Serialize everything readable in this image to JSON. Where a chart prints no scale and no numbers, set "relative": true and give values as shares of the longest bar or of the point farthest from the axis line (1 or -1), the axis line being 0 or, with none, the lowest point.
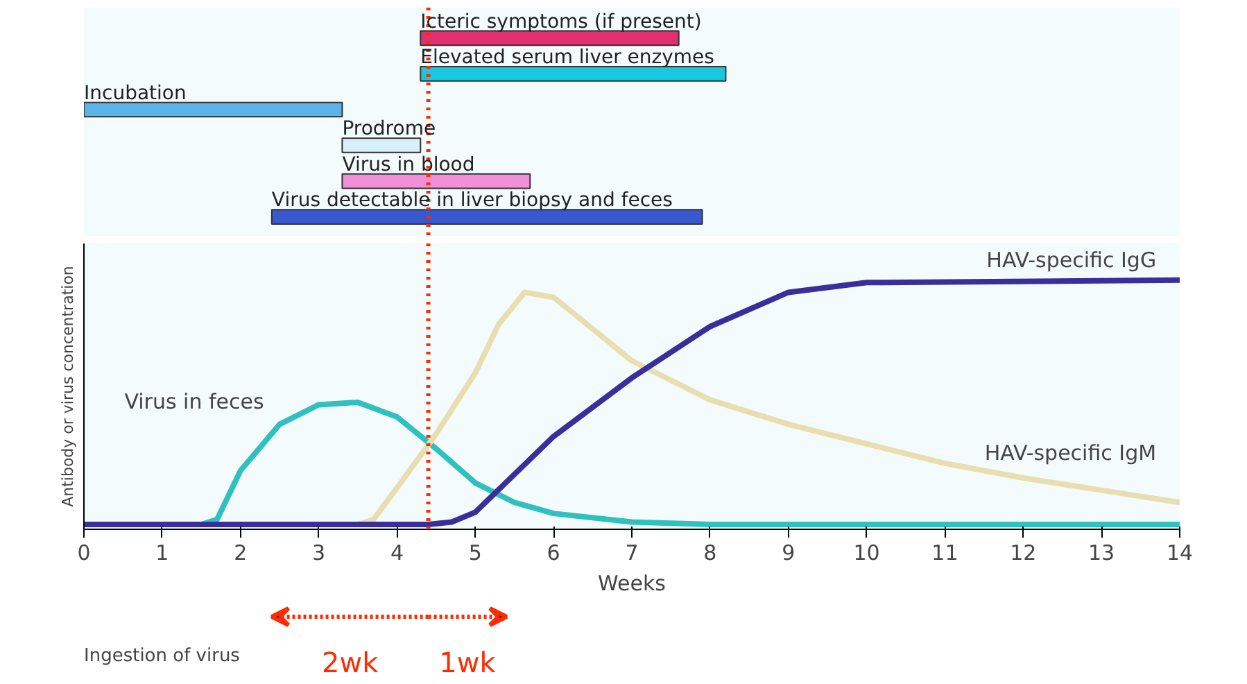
{
  "chart_data": [
    {
      "type": "bar",
      "orientation": "horizontal",
      "categories": [
        "Icteric symptoms (if present)",
        "Elevated serum liver enzymes",
        "Incubation",
        "Prodrome",
        "Virus in blood",
        "Virus detectable in liver biopsy and feces"
      ],
      "base": [
        4.3,
        4.3,
        0,
        3.3,
        3.3,
        2.4
      ],
      "values": [
        3.3,
        3.9,
        3.3,
        1.0,
        2.4,
        5.5
      ],
      "colors": [
        "#e0306f",
        "#18c8e0",
        "#5ab4e8",
        "#d8f0f8",
        "#f090d8",
        "#3858d0"
      ],
      "xlim": [
        0,
        14
      ],
      "tick_labels": false,
      "grid": false,
      "ref_lines": [
        {
          "axis": "x",
          "value": 4.4,
          "label": null,
          "color": "#ff2a00",
          "line_style": "dotted"
        }
      ]
    },
    {
      "type": "line",
      "relative": true,
      "xlabel": "Weeks",
      "ylabel": "Antibody or virus concentration",
      "xlim": [
        0,
        14
      ],
      "xticks": [
        0,
        1,
        2,
        3,
        4,
        5,
        6,
        7,
        8,
        9,
        10,
        11,
        12,
        13,
        14
      ],
      "tick_labels": "x",
      "grid": false,
      "series": [
        {
          "name": "Virus in feces",
          "color": "#30c0c0",
          "x": [
            0,
            1.5,
            1.7,
            2,
            2.5,
            3,
            3.5,
            4,
            4.5,
            5,
            5.5,
            6,
            7,
            8,
            10,
            14
          ],
          "values": [
            0,
            0,
            0.02,
            0.22,
            0.41,
            0.49,
            0.5,
            0.44,
            0.31,
            0.17,
            0.09,
            0.045,
            0.01,
            0,
            0,
            0
          ]
        },
        {
          "name": "HAV-specific IgM",
          "color": "#e8deb0",
          "x": [
            0,
            3.5,
            3.7,
            4,
            4.5,
            5,
            5.3,
            5.63,
            6,
            7,
            8,
            9,
            10,
            11,
            12,
            13,
            14
          ],
          "values": [
            0,
            0,
            0.02,
            0.15,
            0.37,
            0.62,
            0.82,
            0.95,
            0.93,
            0.67,
            0.51,
            0.41,
            0.33,
            0.25,
            0.19,
            0.14,
            0.09
          ]
        },
        {
          "name": "HAV-specific IgG",
          "color": "#3a2e9a",
          "x": [
            0,
            4.4,
            4.7,
            5,
            6,
            7,
            8,
            9,
            10,
            14
          ],
          "values": [
            0,
            0,
            0.01,
            0.05,
            0.36,
            0.6,
            0.81,
            0.95,
            0.99,
            1
          ]
        }
      ],
      "ref_lines": [
        {
          "axis": "x",
          "value": 4.4,
          "label": null,
          "color": "#ff2a00",
          "line_style": "dotted"
        }
      ],
      "annotations": [
        "Ingestion of virus",
        "2wk",
        "1wk"
      ]
    }
  ]
}
